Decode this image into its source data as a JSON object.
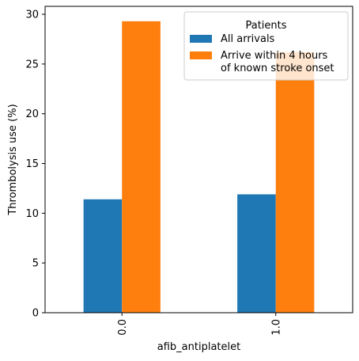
{
  "chart_data": {
    "type": "bar",
    "categories": [
      "0.0",
      "1.0"
    ],
    "series": [
      {
        "name": "All arrivals",
        "values": [
          11.4,
          11.9
        ],
        "color": "#1f77b4"
      },
      {
        "name": "Arrive within 4 hours\nof known stroke onset",
        "values": [
          29.3,
          26.2
        ],
        "color": "#ff7f0e"
      }
    ],
    "title": "",
    "xlabel": "afib_antiplatelet",
    "ylabel": "Thrombolysis use (%)",
    "ylim": [
      0,
      30.8
    ],
    "yticks": [
      0,
      5,
      10,
      15,
      20,
      25,
      30
    ],
    "legend": {
      "title": "Patients",
      "placement": "top-right"
    },
    "grid": false
  }
}
